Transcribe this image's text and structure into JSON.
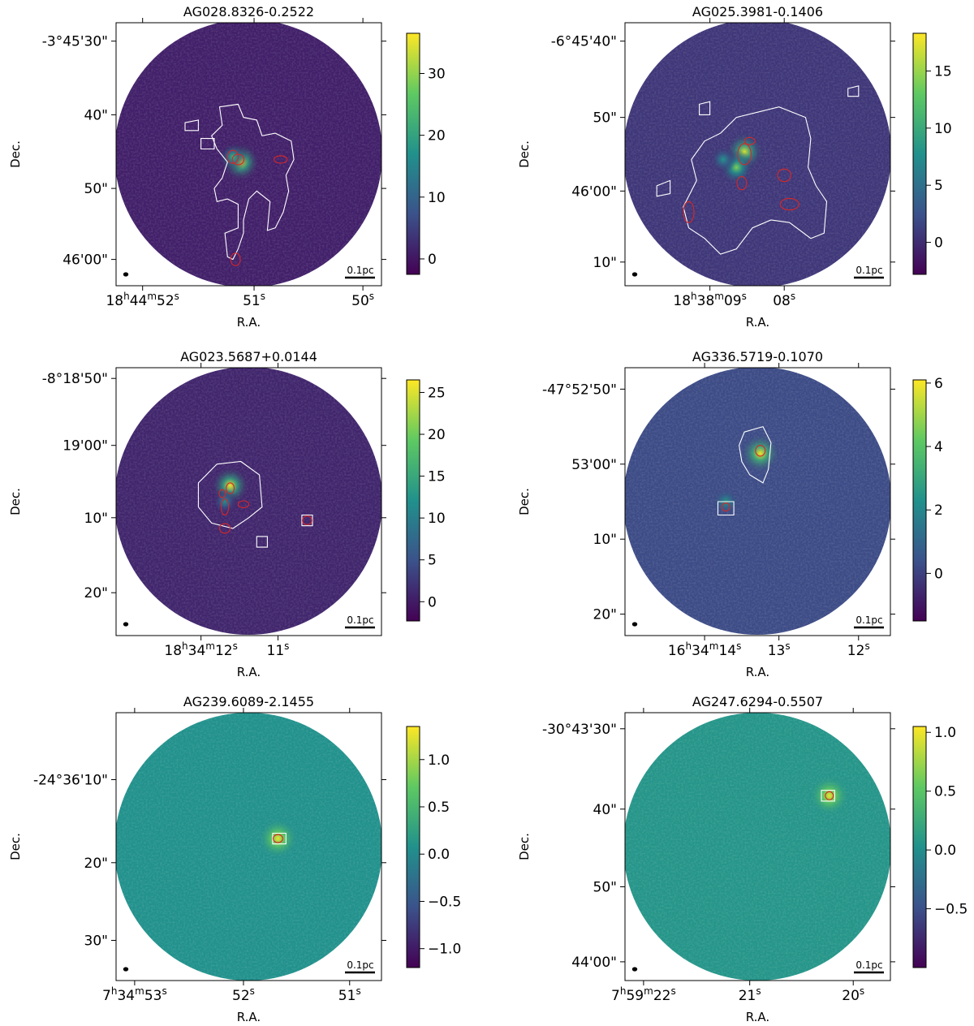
{
  "figure": {
    "common_xlabel": "R.A.",
    "common_ylabel": "Dec.",
    "colormap": [
      "#440154",
      "#3b528b",
      "#21918c",
      "#5ec962",
      "#fde725"
    ],
    "contour_colors": {
      "outer": "#ffffff",
      "core": "#d62728"
    }
  },
  "chart_data": [
    {
      "type": "heatmap",
      "title": "AG028.8326-0.2522",
      "xlabel": "R.A.",
      "ylabel": "Dec.",
      "x_ticks": [
        {
          "pre": "18",
          "h": "h",
          "mid": "44",
          "m": "m",
          "sec": "52",
          "s": "s"
        },
        {
          "sec": "51",
          "s": "s"
        },
        {
          "sec": "50",
          "s": "s"
        }
      ],
      "y_ticks": [
        "-3°45'30\"",
        "40\"",
        "50\"",
        "46'00\""
      ],
      "colorbar": {
        "range": [
          -2.5,
          36.5
        ],
        "ticks": [
          "0",
          "10",
          "20",
          "30"
        ],
        "tick_values": [
          0,
          10,
          20,
          30
        ]
      },
      "scalebar": "0.1pc",
      "peaks": [
        {
          "x": 0.47,
          "y": 0.53,
          "value": 36
        },
        {
          "x": 0.44,
          "y": 0.51,
          "value": 22
        }
      ]
    },
    {
      "type": "heatmap",
      "title": "AG025.3981-0.1406",
      "xlabel": "R.A.",
      "ylabel": "Dec.",
      "x_ticks": [
        {
          "pre": "18",
          "h": "h",
          "mid": "38",
          "m": "m",
          "sec": "09",
          "s": "s"
        },
        {
          "sec": "08",
          "s": "s"
        }
      ],
      "y_ticks": [
        "-6°45'40\"",
        "50\"",
        "46'00\"",
        "10\""
      ],
      "colorbar": {
        "range": [
          -2.8,
          18.3
        ],
        "ticks": [
          "0",
          "5",
          "10",
          "15"
        ],
        "tick_values": [
          0,
          5,
          10,
          15
        ]
      },
      "scalebar": "0.1pc",
      "peaks": [
        {
          "x": 0.45,
          "y": 0.49,
          "value": 17
        },
        {
          "x": 0.42,
          "y": 0.55,
          "value": 14
        },
        {
          "x": 0.37,
          "y": 0.52,
          "value": 8
        }
      ]
    },
    {
      "type": "heatmap",
      "title": "AG023.5687+0.0144",
      "xlabel": "R.A.",
      "ylabel": "Dec.",
      "x_ticks": [
        {
          "pre": "18",
          "h": "h",
          "mid": "34",
          "m": "m",
          "sec": "12",
          "s": "s"
        },
        {
          "sec": "11",
          "s": "s"
        }
      ],
      "y_ticks": [
        "-8°18'50\"",
        "19'00\"",
        "10\"",
        "20\""
      ],
      "colorbar": {
        "range": [
          -2.3,
          26.5
        ],
        "ticks": [
          "0",
          "5",
          "10",
          "15",
          "20",
          "25"
        ],
        "tick_values": [
          0,
          5,
          10,
          15,
          20,
          25
        ]
      },
      "scalebar": "0.1pc",
      "peaks": [
        {
          "x": 0.43,
          "y": 0.44,
          "value": 26
        },
        {
          "x": 0.41,
          "y": 0.5,
          "value": 12
        }
      ]
    },
    {
      "type": "heatmap",
      "title": "AG336.5719-0.1070",
      "xlabel": "R.A.",
      "ylabel": "Dec.",
      "x_ticks": [
        {
          "pre": "16",
          "h": "h",
          "mid": "34",
          "m": "m",
          "sec": "14",
          "s": "s"
        },
        {
          "sec": "13",
          "s": "s"
        },
        {
          "sec": "12",
          "s": "s"
        }
      ],
      "y_ticks": [
        "-47°52'50\"",
        "53'00\"",
        "10\"",
        "20\""
      ],
      "colorbar": {
        "range": [
          -1.5,
          6.1
        ],
        "ticks": [
          "0",
          "2",
          "4",
          "6"
        ],
        "tick_values": [
          0,
          2,
          4,
          6
        ]
      },
      "scalebar": "0.1pc",
      "peaks": [
        {
          "x": 0.51,
          "y": 0.32,
          "value": 6
        },
        {
          "x": 0.38,
          "y": 0.5,
          "value": 2.5
        }
      ]
    },
    {
      "type": "heatmap",
      "title": "AG239.6089-2.1455",
      "xlabel": "R.A.",
      "ylabel": "Dec.",
      "x_ticks": [
        {
          "pre": "7",
          "h": "h",
          "mid": "34",
          "m": "m",
          "sec": "53",
          "s": "s"
        },
        {
          "sec": "52",
          "s": "s"
        },
        {
          "sec": "51",
          "s": "s"
        }
      ],
      "y_ticks": [
        "-24°36'10\"",
        "20\"",
        "30\""
      ],
      "colorbar": {
        "range": [
          -1.2,
          1.35
        ],
        "ticks": [
          "−1.0",
          "−0.5",
          "0.0",
          "0.5",
          "1.0"
        ],
        "tick_values": [
          -1.0,
          -0.5,
          0.0,
          0.5,
          1.0
        ]
      },
      "scalebar": "0.1pc",
      "peaks": [
        {
          "x": 0.61,
          "y": 0.47,
          "value": 1.3
        }
      ]
    },
    {
      "type": "heatmap",
      "title": "AG247.6294-0.5507",
      "xlabel": "R.A.",
      "ylabel": "Dec.",
      "x_ticks": [
        {
          "pre": "7",
          "h": "h",
          "mid": "59",
          "m": "m",
          "sec": "22",
          "s": "s"
        },
        {
          "sec": "21",
          "s": "s"
        },
        {
          "sec": "20",
          "s": "s"
        }
      ],
      "y_ticks": [
        "-30°43'30\"",
        "40\"",
        "50\"",
        "44'00\""
      ],
      "colorbar": {
        "range": [
          -1.0,
          1.05
        ],
        "ticks": [
          "−0.5",
          "0.0",
          "0.5",
          "1.0"
        ],
        "tick_values": [
          -0.5,
          0.0,
          0.5,
          1.0
        ]
      },
      "scalebar": "0.1pc",
      "peaks": [
        {
          "x": 0.77,
          "y": 0.31,
          "value": 1.0
        }
      ]
    }
  ]
}
